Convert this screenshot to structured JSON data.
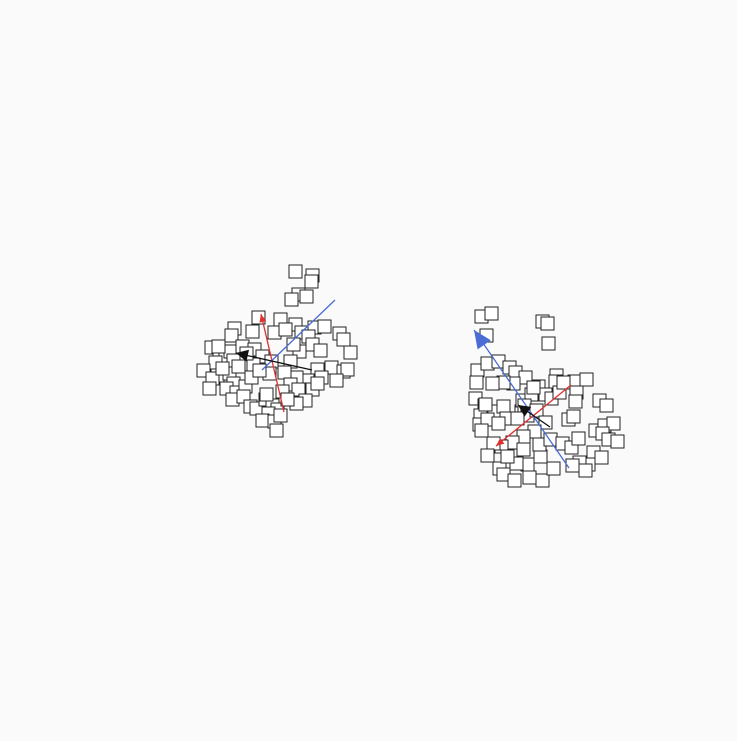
{
  "colors": {
    "background": "#fafafa",
    "node_fill": "#ffffff",
    "node_stroke": "#222222",
    "axis_red": "#e03030",
    "axis_blue": "#4a6cd4",
    "axis_black": "#111111"
  },
  "clusters": [
    {
      "name": "left-cluster",
      "node_count": 90,
      "arrows": [
        {
          "name": "red-arrow",
          "color_key": "axis_red",
          "head": "filled-small"
        },
        {
          "name": "blue-arrow",
          "color_key": "axis_blue",
          "head": "none"
        },
        {
          "name": "black-arrow",
          "color_key": "axis_black",
          "head": "filled"
        }
      ]
    },
    {
      "name": "right-cluster",
      "node_count": 100,
      "arrows": [
        {
          "name": "red-arrow",
          "color_key": "axis_red",
          "head": "filled-small"
        },
        {
          "name": "blue-arrow",
          "color_key": "axis_blue",
          "head": "filled-large"
        },
        {
          "name": "black-arrow",
          "color_key": "axis_black",
          "head": "filled"
        }
      ]
    }
  ]
}
